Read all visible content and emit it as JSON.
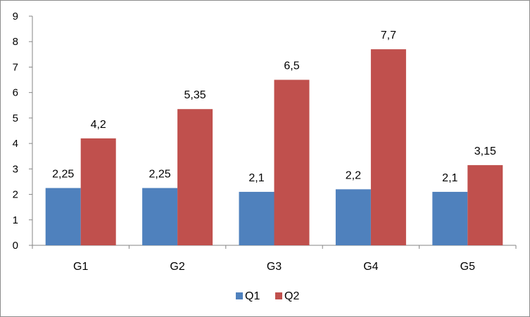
{
  "chart_data": {
    "type": "bar",
    "categories": [
      "G1",
      "G2",
      "G3",
      "G4",
      "G5"
    ],
    "series": [
      {
        "name": "Q1",
        "color": "#4F81BD",
        "values": [
          2.25,
          2.25,
          2.1,
          2.2,
          2.1
        ],
        "labels": [
          "2,25",
          "2,25",
          "2,1",
          "2,2",
          "2,1"
        ]
      },
      {
        "name": "Q2",
        "color": "#C0504D",
        "values": [
          4.2,
          5.35,
          6.5,
          7.7,
          3.15
        ],
        "labels": [
          "4,2",
          "5,35",
          "6,5",
          "7,7",
          "3,15"
        ]
      }
    ],
    "y_ticks": [
      "0",
      "1",
      "2",
      "3",
      "4",
      "5",
      "6",
      "7",
      "8",
      "9"
    ],
    "ylim": [
      0,
      9
    ],
    "grid": false,
    "legend": "bottom"
  }
}
